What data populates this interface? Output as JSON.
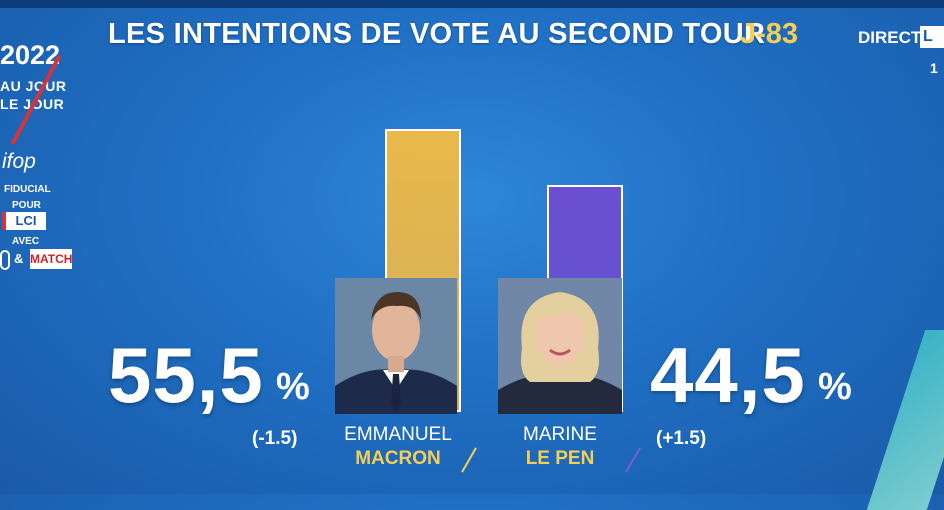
{
  "header": {
    "title": "LES INTENTIONS DE VOTE AU SECOND TOUR",
    "countdown": "J-83",
    "live_label": "DIRECT",
    "channel_corner": "L",
    "corner_digit": "1"
  },
  "branding": {
    "year": "2022",
    "show_line1": "AU JOUR",
    "show_line2": "LE JOUR",
    "pollster": "ifop",
    "pollster_sub": "FIDUCIAL",
    "pour_label": "POUR",
    "channel": "LCI",
    "avec_label": "AVEC",
    "amp": "&",
    "partner": "MATCH"
  },
  "colors": {
    "background": "#1f6fc4",
    "macron_bar": "#e9b84a",
    "lepen_bar": "#6a4fd0",
    "accent_yellow": "#f3cf56"
  },
  "chart_data": {
    "type": "bar",
    "title": "LES INTENTIONS DE VOTE AU SECOND TOUR",
    "categories": [
      "EMMANUEL MACRON",
      "MARINE LE PEN"
    ],
    "values": [
      55.5,
      44.5
    ],
    "ylim": [
      0,
      60
    ],
    "candidates": [
      {
        "first_name": "EMMANUEL",
        "last_name": "MACRON",
        "value": 55.5,
        "value_label": "55,5",
        "change_label": "(-1.5)",
        "color": "#e9b84a"
      },
      {
        "first_name": "MARINE",
        "last_name": "LE PEN",
        "value": 44.5,
        "value_label": "44,5",
        "change_label": "(+1.5)",
        "color": "#6a4fd0"
      }
    ],
    "unit": "%"
  }
}
